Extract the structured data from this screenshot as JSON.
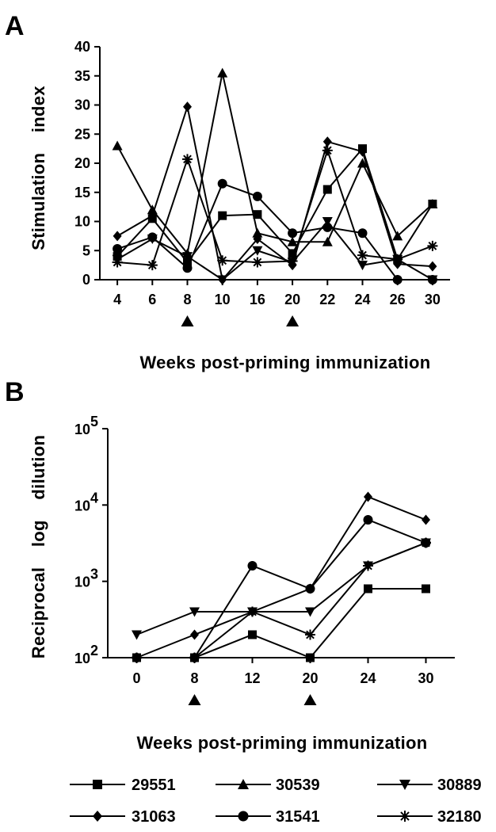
{
  "series_names": [
    "29551",
    "30539",
    "30889",
    "31063",
    "31541",
    "32180"
  ],
  "markers": [
    "square",
    "triangle-up",
    "triangle-down",
    "diamond",
    "circle",
    "asterisk"
  ],
  "chart_data": [
    {
      "panel_label": "A",
      "type": "line",
      "ylabel": "Stimulation    index",
      "xlabel": "Weeks post-priming immunization",
      "categories": [
        "4",
        "6",
        "8",
        "10",
        "16",
        "20",
        "22",
        "24",
        "26",
        "30"
      ],
      "yticks": [
        "0",
        "5",
        "10",
        "15",
        "20",
        "25",
        "30",
        "35",
        "40"
      ],
      "ylim": [
        0,
        40
      ],
      "arrows_at": [
        "8",
        "20"
      ],
      "series": [
        {
          "name": "29551",
          "values": [
            4,
            10.5,
            3,
            11,
            11.2,
            4.5,
            15.5,
            22.5,
            3.5,
            13
          ]
        },
        {
          "name": "30539",
          "values": [
            23,
            12,
            4.5,
            35.5,
            8,
            6.5,
            6.5,
            20,
            7.5,
            13
          ]
        },
        {
          "name": "30889",
          "values": [
            3.5,
            7,
            4,
            0,
            5,
            3,
            10,
            2.5,
            3.5,
            0
          ]
        },
        {
          "name": "31063",
          "values": [
            7.5,
            11,
            29.7,
            0,
            7,
            2.5,
            23.7,
            22,
            2.7,
            2.3
          ]
        },
        {
          "name": "31541",
          "values": [
            5.3,
            7.3,
            2,
            16.5,
            14.3,
            8,
            9,
            8,
            0,
            0
          ]
        },
        {
          "name": "32180",
          "values": [
            3,
            2.5,
            20.7,
            3.3,
            3,
            3.2,
            22.2,
            4.2,
            3.5,
            5.8
          ]
        }
      ]
    },
    {
      "panel_label": "B",
      "type": "line",
      "yscale": "log",
      "ylabel": "Reciprocal    log    dilution",
      "xlabel": "Weeks post-priming immunization",
      "categories": [
        "0",
        "8",
        "12",
        "20",
        "24",
        "30"
      ],
      "ylim": [
        100,
        100000
      ],
      "yticks": [
        {
          "base": "10",
          "exp": "2"
        },
        {
          "base": "10",
          "exp": "3"
        },
        {
          "base": "10",
          "exp": "4"
        },
        {
          "base": "10",
          "exp": "5"
        }
      ],
      "arrows_at": [
        "8",
        "20"
      ],
      "series": [
        {
          "name": "29551",
          "values": [
            100,
            100,
            200,
            100,
            800,
            800
          ]
        },
        {
          "name": "30889",
          "values": [
            200,
            400,
            400,
            400,
            1600,
            3200
          ]
        },
        {
          "name": "31063",
          "values": [
            100,
            200,
            400,
            800,
            12800,
            6400
          ]
        },
        {
          "name": "31541",
          "values": [
            100,
            100,
            1600,
            800,
            6400,
            3200
          ]
        },
        {
          "name": "32180",
          "values": [
            100,
            100,
            400,
            200,
            1600,
            3200
          ]
        }
      ]
    }
  ]
}
